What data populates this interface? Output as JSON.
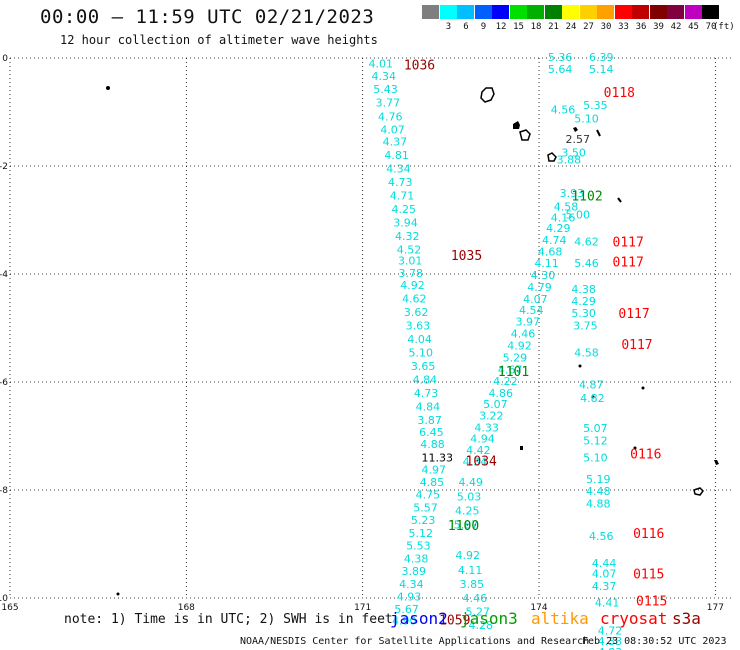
{
  "header": {
    "title": "00:00 — 11:59 UTC 02/21/2023",
    "subtitle": "12 hour collection of altimeter wave heights"
  },
  "legend": {
    "swatches": [
      {
        "color": "#7f7f7f",
        "label": ""
      },
      {
        "color": "#00ffff",
        "label": "3"
      },
      {
        "color": "#00bfff",
        "label": "6"
      },
      {
        "color": "#0060ff",
        "label": "9"
      },
      {
        "color": "#0000ff",
        "label": "12"
      },
      {
        "color": "#00e000",
        "label": "15"
      },
      {
        "color": "#00b000",
        "label": "18"
      },
      {
        "color": "#008000",
        "label": "21"
      },
      {
        "color": "#ffff00",
        "label": "24"
      },
      {
        "color": "#ffd000",
        "label": "27"
      },
      {
        "color": "#ffa000",
        "label": "30"
      },
      {
        "color": "#ff0000",
        "label": "33"
      },
      {
        "color": "#c00000",
        "label": "36"
      },
      {
        "color": "#800000",
        "label": "39"
      },
      {
        "color": "#800040",
        "label": "42"
      },
      {
        "color": "#c000c0",
        "label": "45"
      },
      {
        "color": "#000000",
        "label": "70"
      }
    ],
    "unit": "(ft)"
  },
  "footer": {
    "note": "note: 1) Time is in UTC; 2) SWH is in feet",
    "satellites": [
      {
        "name": "jason2",
        "color": "#0000ff"
      },
      {
        "name": "jason3",
        "color": "#00a000"
      },
      {
        "name": "altika",
        "color": "#ff9900"
      },
      {
        "name": "cryosat",
        "color": "#ff0000"
      },
      {
        "name": "s3a",
        "color": "#990000"
      }
    ],
    "credit": "NOAA/NESDIS Center for Satellite Applications and Research",
    "timestamp": "Feb 23 08:30:52 UTC 2023"
  },
  "chart_data": {
    "type": "scatter",
    "title": "00:00 — 11:59 UTC 02/21/2023",
    "subtitle": "12 hour collection of altimeter wave heights",
    "xlim": [
      165,
      177.3
    ],
    "ylim": [
      -10,
      0
    ],
    "x_ticks": [
      165,
      168,
      171,
      174,
      177
    ],
    "x_tick_labels": [
      "165",
      "168",
      "171",
      "174",
      "177"
    ],
    "y_ticks": [
      0,
      -2,
      -4,
      -6,
      -8,
      -10
    ],
    "y_tick_labels": [
      "0",
      "-2",
      "-4",
      "-6",
      "-8",
      "-10"
    ],
    "grid": true,
    "swh_labels": [
      {
        "text": "4.01",
        "x": 171.1,
        "y": -0.1,
        "color": "#00dddd"
      },
      {
        "text": "4.34",
        "x": 171.15,
        "y": -0.33,
        "color": "#00dddd"
      },
      {
        "text": "5.43",
        "x": 171.18,
        "y": -0.57,
        "color": "#00dddd"
      },
      {
        "text": "3.77",
        "x": 171.22,
        "y": -0.82,
        "color": "#00dddd"
      },
      {
        "text": "4.76",
        "x": 171.26,
        "y": -1.08,
        "color": "#00dddd"
      },
      {
        "text": "4.07",
        "x": 171.3,
        "y": -1.32,
        "color": "#00dddd"
      },
      {
        "text": "4.37",
        "x": 171.34,
        "y": -1.55,
        "color": "#00dddd"
      },
      {
        "text": "4.81",
        "x": 171.37,
        "y": -1.8,
        "color": "#00dddd"
      },
      {
        "text": "4.34",
        "x": 171.4,
        "y": -2.05,
        "color": "#00dddd"
      },
      {
        "text": "4.73",
        "x": 171.43,
        "y": -2.3,
        "color": "#00dddd"
      },
      {
        "text": "4.71",
        "x": 171.46,
        "y": -2.55,
        "color": "#00dddd"
      },
      {
        "text": "4.25",
        "x": 171.49,
        "y": -2.8,
        "color": "#00dddd"
      },
      {
        "text": "3.94",
        "x": 171.52,
        "y": -3.05,
        "color": "#00dddd"
      },
      {
        "text": "4.32",
        "x": 171.55,
        "y": -3.3,
        "color": "#00dddd"
      },
      {
        "text": "4.52",
        "x": 171.58,
        "y": -3.55,
        "color": "#00dddd"
      },
      {
        "text": "3.01",
        "x": 171.6,
        "y": -3.75,
        "color": "#00dddd"
      },
      {
        "text": "3.78",
        "x": 171.61,
        "y": -3.98,
        "color": "#00dddd"
      },
      {
        "text": "4.92",
        "x": 171.64,
        "y": -4.2,
        "color": "#00dddd"
      },
      {
        "text": "4.62",
        "x": 171.67,
        "y": -4.45,
        "color": "#00dddd"
      },
      {
        "text": "3.62",
        "x": 171.7,
        "y": -4.7,
        "color": "#00dddd"
      },
      {
        "text": "3.63",
        "x": 171.73,
        "y": -4.95,
        "color": "#00dddd"
      },
      {
        "text": "4.04",
        "x": 171.76,
        "y": -5.2,
        "color": "#00dddd"
      },
      {
        "text": "5.10",
        "x": 171.78,
        "y": -5.45,
        "color": "#00dddd"
      },
      {
        "text": "3.65",
        "x": 171.82,
        "y": -5.7,
        "color": "#00dddd"
      },
      {
        "text": "4.84",
        "x": 171.85,
        "y": -5.95,
        "color": "#00dddd"
      },
      {
        "text": "4.73",
        "x": 171.87,
        "y": -6.2,
        "color": "#00dddd"
      },
      {
        "text": "4.84",
        "x": 171.9,
        "y": -6.45,
        "color": "#00dddd"
      },
      {
        "text": "3.87",
        "x": 171.93,
        "y": -6.7,
        "color": "#00dddd"
      },
      {
        "text": "6.45",
        "x": 171.96,
        "y": -6.93,
        "color": "#00dddd"
      },
      {
        "text": "4.88",
        "x": 171.98,
        "y": -7.15,
        "color": "#00dddd"
      },
      {
        "text": "11.33",
        "x": 172.0,
        "y": -7.4,
        "color": "#000000"
      },
      {
        "text": "4.97",
        "x": 172.0,
        "y": -7.62,
        "color": "#00dddd"
      },
      {
        "text": "4.85",
        "x": 171.97,
        "y": -7.85,
        "color": "#00dddd"
      },
      {
        "text": "4.75",
        "x": 171.9,
        "y": -8.08,
        "color": "#00dddd"
      },
      {
        "text": "5.57",
        "x": 171.86,
        "y": -8.32,
        "color": "#00dddd"
      },
      {
        "text": "5.23",
        "x": 171.82,
        "y": -8.56,
        "color": "#00dddd"
      },
      {
        "text": "5.12",
        "x": 171.78,
        "y": -8.8,
        "color": "#00dddd"
      },
      {
        "text": "5.53",
        "x": 171.74,
        "y": -9.03,
        "color": "#00dddd"
      },
      {
        "text": "4.38",
        "x": 171.7,
        "y": -9.27,
        "color": "#00dddd"
      },
      {
        "text": "3.89",
        "x": 171.66,
        "y": -9.5,
        "color": "#00dddd"
      },
      {
        "text": "4.34",
        "x": 171.62,
        "y": -9.74,
        "color": "#00dddd"
      },
      {
        "text": "4.93",
        "x": 171.58,
        "y": -9.97,
        "color": "#00dddd"
      },
      {
        "text": "5.67",
        "x": 171.54,
        "y": -10.2,
        "color": "#00dddd"
      },
      {
        "text": "4.90",
        "x": 171.5,
        "y": -10.42,
        "color": "#00dddd"
      },
      {
        "text": "5.36",
        "x": 174.15,
        "y": 0.02,
        "color": "#00dddd"
      },
      {
        "text": "5.64",
        "x": 174.15,
        "y": -0.2,
        "color": "#00dddd"
      },
      {
        "text": "4.56",
        "x": 174.2,
        "y": -0.95,
        "color": "#00dddd"
      },
      {
        "text": "3.88",
        "x": 174.3,
        "y": -1.88,
        "color": "#00dddd"
      },
      {
        "text": "3.93",
        "x": 174.35,
        "y": -2.5,
        "color": "#00dddd"
      },
      {
        "text": "4.58",
        "x": 174.25,
        "y": -2.75,
        "color": "#00dddd"
      },
      {
        "text": "4.16",
        "x": 174.2,
        "y": -2.95,
        "color": "#00dddd"
      },
      {
        "text": "4.29",
        "x": 174.12,
        "y": -3.15,
        "color": "#00dddd"
      },
      {
        "text": "4.74",
        "x": 174.05,
        "y": -3.37,
        "color": "#00dddd"
      },
      {
        "text": "4.68",
        "x": 173.98,
        "y": -3.58,
        "color": "#00dddd"
      },
      {
        "text": "4.11",
        "x": 173.92,
        "y": -3.8,
        "color": "#00dddd"
      },
      {
        "text": "4.30",
        "x": 173.86,
        "y": -4.02,
        "color": "#00dddd"
      },
      {
        "text": "4.79",
        "x": 173.8,
        "y": -4.24,
        "color": "#00dddd"
      },
      {
        "text": "4.07",
        "x": 173.73,
        "y": -4.46,
        "color": "#00dddd"
      },
      {
        "text": "4.54",
        "x": 173.66,
        "y": -4.67,
        "color": "#00dddd"
      },
      {
        "text": "3.97",
        "x": 173.6,
        "y": -4.88,
        "color": "#00dddd"
      },
      {
        "text": "4.46",
        "x": 173.52,
        "y": -5.1,
        "color": "#00dddd"
      },
      {
        "text": "4.92",
        "x": 173.46,
        "y": -5.32,
        "color": "#00dddd"
      },
      {
        "text": "5.29",
        "x": 173.38,
        "y": -5.55,
        "color": "#00dddd"
      },
      {
        "text": "4.67",
        "x": 173.3,
        "y": -5.77,
        "color": "#00dddd"
      },
      {
        "text": "4.22",
        "x": 173.22,
        "y": -5.98,
        "color": "#00dddd"
      },
      {
        "text": "4.86",
        "x": 173.14,
        "y": -6.2,
        "color": "#00dddd"
      },
      {
        "text": "5.07",
        "x": 173.05,
        "y": -6.41,
        "color": "#00dddd"
      },
      {
        "text": "3.22",
        "x": 172.98,
        "y": -6.62,
        "color": "#00dddd"
      },
      {
        "text": "4.33",
        "x": 172.9,
        "y": -6.84,
        "color": "#00dddd"
      },
      {
        "text": "4.94",
        "x": 172.83,
        "y": -7.05,
        "color": "#00dddd"
      },
      {
        "text": "4.42",
        "x": 172.76,
        "y": -7.26,
        "color": "#00dddd"
      },
      {
        "text": "4.34",
        "x": 172.7,
        "y": -7.47,
        "color": "#00dddd"
      },
      {
        "text": "4.49",
        "x": 172.63,
        "y": -7.85,
        "color": "#00dddd"
      },
      {
        "text": "5.03",
        "x": 172.6,
        "y": -8.12,
        "color": "#00dddd"
      },
      {
        "text": "4.25",
        "x": 172.57,
        "y": -8.38,
        "color": "#00dddd"
      },
      {
        "text": "5.87",
        "x": 172.55,
        "y": -8.64,
        "color": "#00dddd"
      },
      {
        "text": "4.92",
        "x": 172.58,
        "y": -9.2,
        "color": "#00dddd"
      },
      {
        "text": "4.11",
        "x": 172.62,
        "y": -9.48,
        "color": "#00dddd"
      },
      {
        "text": "3.85",
        "x": 172.65,
        "y": -9.74,
        "color": "#00dddd"
      },
      {
        "text": "4.46",
        "x": 172.7,
        "y": -10.0,
        "color": "#00dddd"
      },
      {
        "text": "5.27",
        "x": 172.75,
        "y": -10.25,
        "color": "#00dddd"
      },
      {
        "text": "4.28",
        "x": 172.8,
        "y": -10.5,
        "color": "#00dddd"
      },
      {
        "text": "6.39",
        "x": 174.85,
        "y": 0.02,
        "color": "#00dddd"
      },
      {
        "text": "5.14",
        "x": 174.85,
        "y": -0.2,
        "color": "#00dddd"
      },
      {
        "text": "5.35",
        "x": 174.75,
        "y": -0.87,
        "color": "#00dddd"
      },
      {
        "text": "5.10",
        "x": 174.6,
        "y": -1.12,
        "color": "#00dddd"
      },
      {
        "text": "2.57",
        "x": 174.45,
        "y": -1.5,
        "color": "#333333"
      },
      {
        "text": "3.50",
        "x": 174.38,
        "y": -1.75,
        "color": "#00dddd"
      },
      {
        "text": "5.00",
        "x": 174.45,
        "y": -2.9,
        "color": "#00dddd"
      },
      {
        "text": "4.62",
        "x": 174.6,
        "y": -3.4,
        "color": "#00dddd"
      },
      {
        "text": "5.46",
        "x": 174.6,
        "y": -3.8,
        "color": "#00dddd"
      },
      {
        "text": "4.38",
        "x": 174.55,
        "y": -4.28,
        "color": "#00dddd"
      },
      {
        "text": "4.29",
        "x": 174.55,
        "y": -4.5,
        "color": "#00dddd"
      },
      {
        "text": "5.30",
        "x": 174.55,
        "y": -4.72,
        "color": "#00dddd"
      },
      {
        "text": "3.75",
        "x": 174.58,
        "y": -4.95,
        "color": "#00dddd"
      },
      {
        "text": "4.58",
        "x": 174.6,
        "y": -5.45,
        "color": "#00dddd"
      },
      {
        "text": "4.87",
        "x": 174.68,
        "y": -6.05,
        "color": "#00dddd"
      },
      {
        "text": "4.82",
        "x": 174.7,
        "y": -6.3,
        "color": "#00dddd"
      },
      {
        "text": "5.07",
        "x": 174.75,
        "y": -6.85,
        "color": "#00dddd"
      },
      {
        "text": "5.12",
        "x": 174.75,
        "y": -7.08,
        "color": "#00dddd"
      },
      {
        "text": "5.10",
        "x": 174.75,
        "y": -7.4,
        "color": "#00dddd"
      },
      {
        "text": "5.19",
        "x": 174.8,
        "y": -7.8,
        "color": "#00dddd"
      },
      {
        "text": "4.48",
        "x": 174.8,
        "y": -8.02,
        "color": "#00dddd"
      },
      {
        "text": "4.88",
        "x": 174.8,
        "y": -8.25,
        "color": "#00dddd"
      },
      {
        "text": "4.56",
        "x": 174.85,
        "y": -8.85,
        "color": "#00dddd"
      },
      {
        "text": "4.44",
        "x": 174.9,
        "y": -9.35,
        "color": "#00dddd"
      },
      {
        "text": "4.07",
        "x": 174.9,
        "y": -9.55,
        "color": "#00dddd"
      },
      {
        "text": "4.37",
        "x": 174.9,
        "y": -9.78,
        "color": "#00dddd"
      },
      {
        "text": "4.41",
        "x": 174.95,
        "y": -10.08,
        "color": "#00dddd"
      },
      {
        "text": "4.72",
        "x": 175.0,
        "y": -10.6,
        "color": "#00dddd"
      },
      {
        "text": "4.33",
        "x": 175.0,
        "y": -10.8,
        "color": "#00dddd"
      },
      {
        "text": "4.83",
        "x": 175.0,
        "y": -11.0,
        "color": "#00dddd"
      }
    ],
    "pressure_labels": [
      {
        "text": "1036",
        "x": 171.7,
        "y": -0.12,
        "color": "#990000"
      },
      {
        "text": "1035",
        "x": 172.5,
        "y": -3.65,
        "color": "#990000"
      },
      {
        "text": "1034",
        "x": 172.75,
        "y": -7.45,
        "color": "#990000"
      },
      {
        "text": "1059",
        "x": 172.3,
        "y": -10.4,
        "color": "#990000"
      },
      {
        "text": "1102",
        "x": 174.55,
        "y": -2.55,
        "color": "#008800"
      },
      {
        "text": "1101",
        "x": 173.3,
        "y": -5.8,
        "color": "#008800"
      },
      {
        "text": "1100",
        "x": 172.45,
        "y": -8.65,
        "color": "#008800"
      },
      {
        "text": "0118",
        "x": 175.1,
        "y": -0.63,
        "color": "#ff0000"
      },
      {
        "text": "0117",
        "x": 175.25,
        "y": -3.4,
        "color": "#ff0000"
      },
      {
        "text": "0117",
        "x": 175.25,
        "y": -3.77,
        "color": "#ff0000"
      },
      {
        "text": "0117",
        "x": 175.35,
        "y": -4.72,
        "color": "#ff0000"
      },
      {
        "text": "0117",
        "x": 175.4,
        "y": -5.3,
        "color": "#ff0000"
      },
      {
        "text": "0116",
        "x": 175.55,
        "y": -7.32,
        "color": "#ff0000"
      },
      {
        "text": "0116",
        "x": 175.6,
        "y": -8.8,
        "color": "#ff0000"
      },
      {
        "text": "0115",
        "x": 175.6,
        "y": -9.55,
        "color": "#ff0000"
      },
      {
        "text": "0115",
        "x": 175.65,
        "y": -10.05,
        "color": "#ff0000"
      }
    ]
  }
}
